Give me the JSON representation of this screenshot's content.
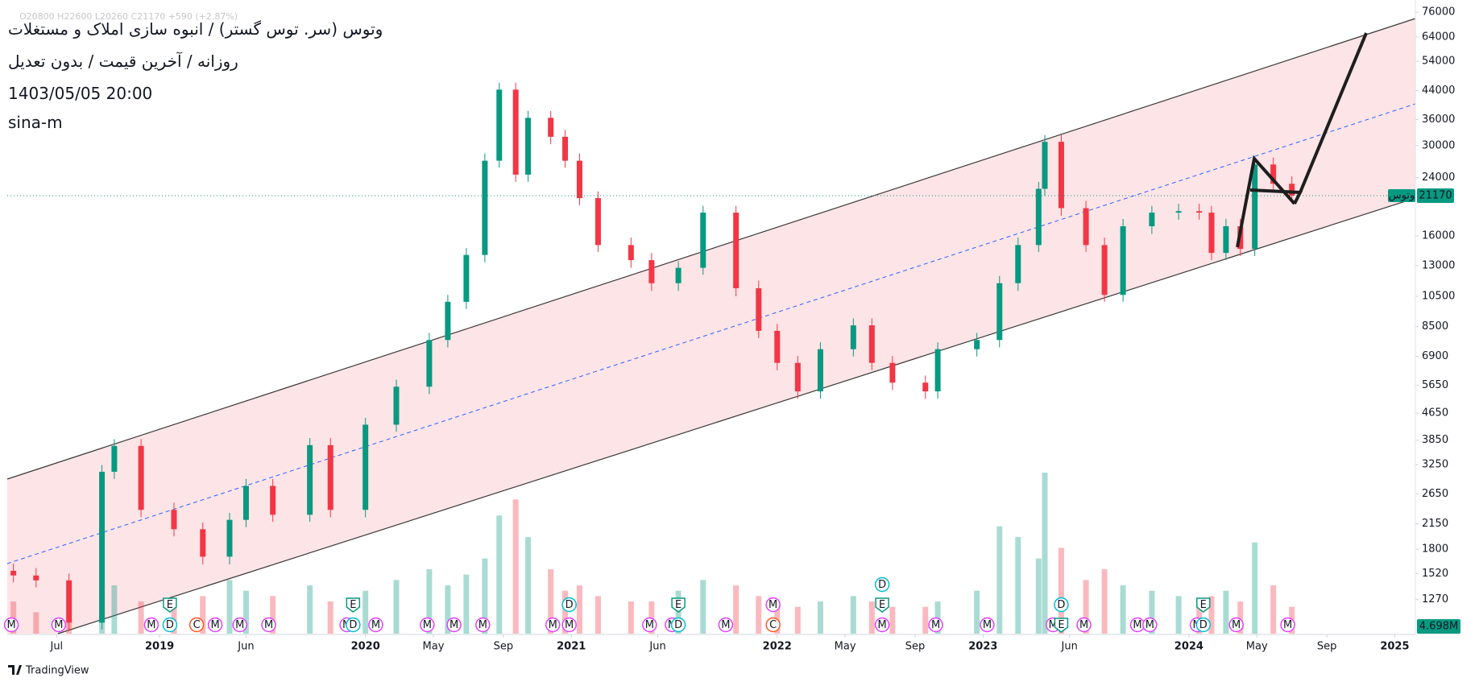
{
  "chart_data": {
    "type": "candlestick",
    "title": "وتوس (سر. توس گستر) / انبوه سازی املاک و مستغلات",
    "subtitle": "روزانه / آخرین قیمت / بدون تعدیل",
    "date_label": "1403/05/05 20:00",
    "author": "sina-m",
    "ohlc_legend": "O20800 H22600 L20260 C21170 +590 (+2.87%)",
    "symbol_label": "وتوس",
    "volume_label": "4.698M",
    "watermark": "TradingView",
    "log_scale": true,
    "grid": false,
    "up_color": "#089981",
    "down_color": "#f23645",
    "xlim": [
      2018.26,
      2025.1
    ],
    "xticks": [
      {
        "value": 2018.5,
        "label": "Jul"
      },
      2019,
      {
        "value": 2019.42,
        "label": "Jun"
      },
      2020,
      {
        "value": 2020.33,
        "label": "May"
      },
      {
        "value": 2020.67,
        "label": "Sep"
      },
      2021,
      {
        "value": 2021.42,
        "label": "Jun"
      },
      2022,
      {
        "value": 2022.33,
        "label": "May"
      },
      {
        "value": 2022.67,
        "label": "Sep"
      },
      2023,
      {
        "value": 2023.42,
        "label": "Jun"
      },
      2024,
      {
        "value": 2024.33,
        "label": "May"
      },
      {
        "value": 2024.67,
        "label": "Sep"
      },
      2025
    ],
    "ylim": [
      1000,
      80000
    ],
    "yticks": [
      1270,
      1520,
      1800,
      2150,
      2650,
      3250,
      3850,
      4650,
      5650,
      6900,
      8500,
      10500,
      13000,
      16000,
      24000,
      30000,
      36000,
      44000,
      54000,
      64000,
      76000
    ],
    "x": [
      2018.29,
      2018.4,
      2018.56,
      2018.72,
      2018.78,
      2018.91,
      2019.07,
      2019.21,
      2019.34,
      2019.42,
      2019.55,
      2019.73,
      2019.83,
      2020.0,
      2020.15,
      2020.31,
      2020.4,
      2020.49,
      2020.58,
      2020.65,
      2020.73,
      2020.79,
      2020.9,
      2020.97,
      2021.04,
      2021.13,
      2021.29,
      2021.39,
      2021.52,
      2021.64,
      2021.8,
      2021.91,
      2022.0,
      2022.1,
      2022.21,
      2022.37,
      2022.46,
      2022.56,
      2022.72,
      2022.78,
      2022.97,
      2023.08,
      2023.17,
      2023.27,
      2023.3,
      2023.38,
      2023.5,
      2023.59,
      2023.68,
      2023.82,
      2023.95,
      2024.05,
      2024.11,
      2024.18,
      2024.25,
      2024.32,
      2024.41,
      2024.5
    ],
    "open": [
      1550,
      1500,
      1450,
      1080,
      3090,
      3700,
      2370,
      2070,
      1710,
      2210,
      2800,
      2290,
      3720,
      2370,
      4290,
      5590,
      7740,
      10100,
      14000,
      27000,
      44300,
      24500,
      36400,
      31900,
      27000,
      20800,
      15000,
      13500,
      11500,
      12800,
      18800,
      11100,
      8250,
      6600,
      5410,
      7260,
      8570,
      6600,
      5750,
      5410,
      7260,
      7740,
      11500,
      15000,
      22200,
      30800,
      19400,
      15000,
      10600,
      17100,
      18800,
      19000,
      18800,
      14200,
      17100,
      14600,
      26300,
      23000
    ],
    "high": [
      1630,
      1580,
      1520,
      3240,
      3880,
      3880,
      2490,
      2170,
      2320,
      2940,
      2940,
      3910,
      3910,
      4500,
      5870,
      8130,
      10600,
      14700,
      28400,
      46500,
      46500,
      38200,
      38200,
      33500,
      28400,
      21800,
      15800,
      14200,
      13400,
      19700,
      19700,
      11700,
      8660,
      6930,
      7620,
      9000,
      9000,
      6930,
      6040,
      7620,
      8130,
      12100,
      15800,
      23300,
      32300,
      32300,
      20400,
      15800,
      18000,
      19700,
      20000,
      20000,
      19700,
      18000,
      18000,
      27600,
      27600,
      24200
    ],
    "low": [
      1430,
      1380,
      1030,
      1030,
      2940,
      2250,
      1970,
      1620,
      1620,
      2100,
      2180,
      2180,
      2250,
      2250,
      4080,
      5310,
      7350,
      9600,
      13300,
      25700,
      23300,
      23300,
      30300,
      25700,
      19800,
      14300,
      12800,
      10900,
      10900,
      12200,
      10500,
      7840,
      6270,
      5140,
      5140,
      6900,
      6270,
      5460,
      5140,
      5140,
      6900,
      7350,
      10900,
      14300,
      21100,
      18400,
      14300,
      10100,
      10100,
      16200,
      17900,
      17900,
      13500,
      13500,
      13900,
      13900,
      21900,
      20100
    ],
    "close": [
      1500,
      1450,
      1080,
      3090,
      3700,
      2370,
      2070,
      1710,
      2210,
      2800,
      2290,
      3720,
      2370,
      4290,
      5590,
      7740,
      10100,
      14000,
      27000,
      44300,
      24500,
      36400,
      31900,
      27000,
      20800,
      15000,
      13500,
      11500,
      12800,
      18800,
      11100,
      8250,
      6600,
      5410,
      7260,
      8570,
      6600,
      5750,
      5410,
      7260,
      7740,
      11500,
      15000,
      22200,
      30800,
      19400,
      15000,
      10600,
      17100,
      18800,
      19000,
      18800,
      14200,
      17100,
      14600,
      26300,
      23000,
      21170
    ],
    "volume": [
      6,
      4,
      3,
      8,
      9,
      6,
      5,
      7,
      10,
      8,
      7,
      9,
      6,
      8,
      10,
      12,
      9,
      11,
      14,
      22,
      25,
      18,
      12,
      8,
      9,
      7,
      6,
      6,
      8,
      10,
      9,
      7,
      6,
      5,
      6,
      7,
      6,
      5,
      5,
      6,
      8,
      20,
      18,
      14,
      30,
      16,
      10,
      12,
      9,
      8,
      7,
      6,
      7,
      8,
      6,
      17,
      9,
      5
    ],
    "event_colors": {
      "M": "#e040fb",
      "D": "#00bcd4",
      "E": "#089981",
      "C": "#ff5722"
    },
    "events": [
      {
        "x": 2018.28,
        "labels": [
          "M"
        ]
      },
      {
        "x": 2018.51,
        "labels": [
          "M"
        ]
      },
      {
        "x": 2018.96,
        "labels": [
          "M"
        ]
      },
      {
        "x": 2019.05,
        "labels": [
          "D",
          "E"
        ]
      },
      {
        "x": 2019.18,
        "labels": [
          "C"
        ]
      },
      {
        "x": 2019.27,
        "labels": [
          "M"
        ]
      },
      {
        "x": 2019.39,
        "labels": [
          "M"
        ]
      },
      {
        "x": 2019.53,
        "labels": [
          "M"
        ]
      },
      {
        "x": 2019.91,
        "labels": [
          "M"
        ]
      },
      {
        "x": 2019.94,
        "labels": [
          "D",
          "E"
        ]
      },
      {
        "x": 2020.05,
        "labels": [
          "M"
        ]
      },
      {
        "x": 2020.3,
        "labels": [
          "M"
        ]
      },
      {
        "x": 2020.43,
        "labels": [
          "M"
        ]
      },
      {
        "x": 2020.57,
        "labels": [
          "M"
        ]
      },
      {
        "x": 2020.91,
        "labels": [
          "M"
        ]
      },
      {
        "x": 2020.99,
        "labels": [
          "M",
          "D"
        ]
      },
      {
        "x": 2021.38,
        "labels": [
          "M"
        ]
      },
      {
        "x": 2021.49,
        "labels": [
          "M"
        ]
      },
      {
        "x": 2021.52,
        "labels": [
          "D",
          "E"
        ]
      },
      {
        "x": 2021.75,
        "labels": [
          "M"
        ]
      },
      {
        "x": 2021.98,
        "labels": [
          "C",
          "M"
        ]
      },
      {
        "x": 2022.51,
        "labels": [
          "M",
          "E",
          "D"
        ]
      },
      {
        "x": 2022.77,
        "labels": [
          "M"
        ]
      },
      {
        "x": 2023.02,
        "labels": [
          "M"
        ]
      },
      {
        "x": 2023.34,
        "labels": [
          "M"
        ]
      },
      {
        "x": 2023.38,
        "labels": [
          "E",
          "D"
        ]
      },
      {
        "x": 2023.49,
        "labels": [
          "M"
        ]
      },
      {
        "x": 2023.75,
        "labels": [
          "M"
        ]
      },
      {
        "x": 2023.81,
        "labels": [
          "M"
        ]
      },
      {
        "x": 2024.04,
        "labels": [
          "M"
        ]
      },
      {
        "x": 2024.07,
        "labels": [
          "D",
          "E"
        ]
      },
      {
        "x": 2024.23,
        "labels": [
          "M"
        ]
      },
      {
        "x": 2024.48,
        "labels": [
          "M"
        ]
      }
    ]
  }
}
